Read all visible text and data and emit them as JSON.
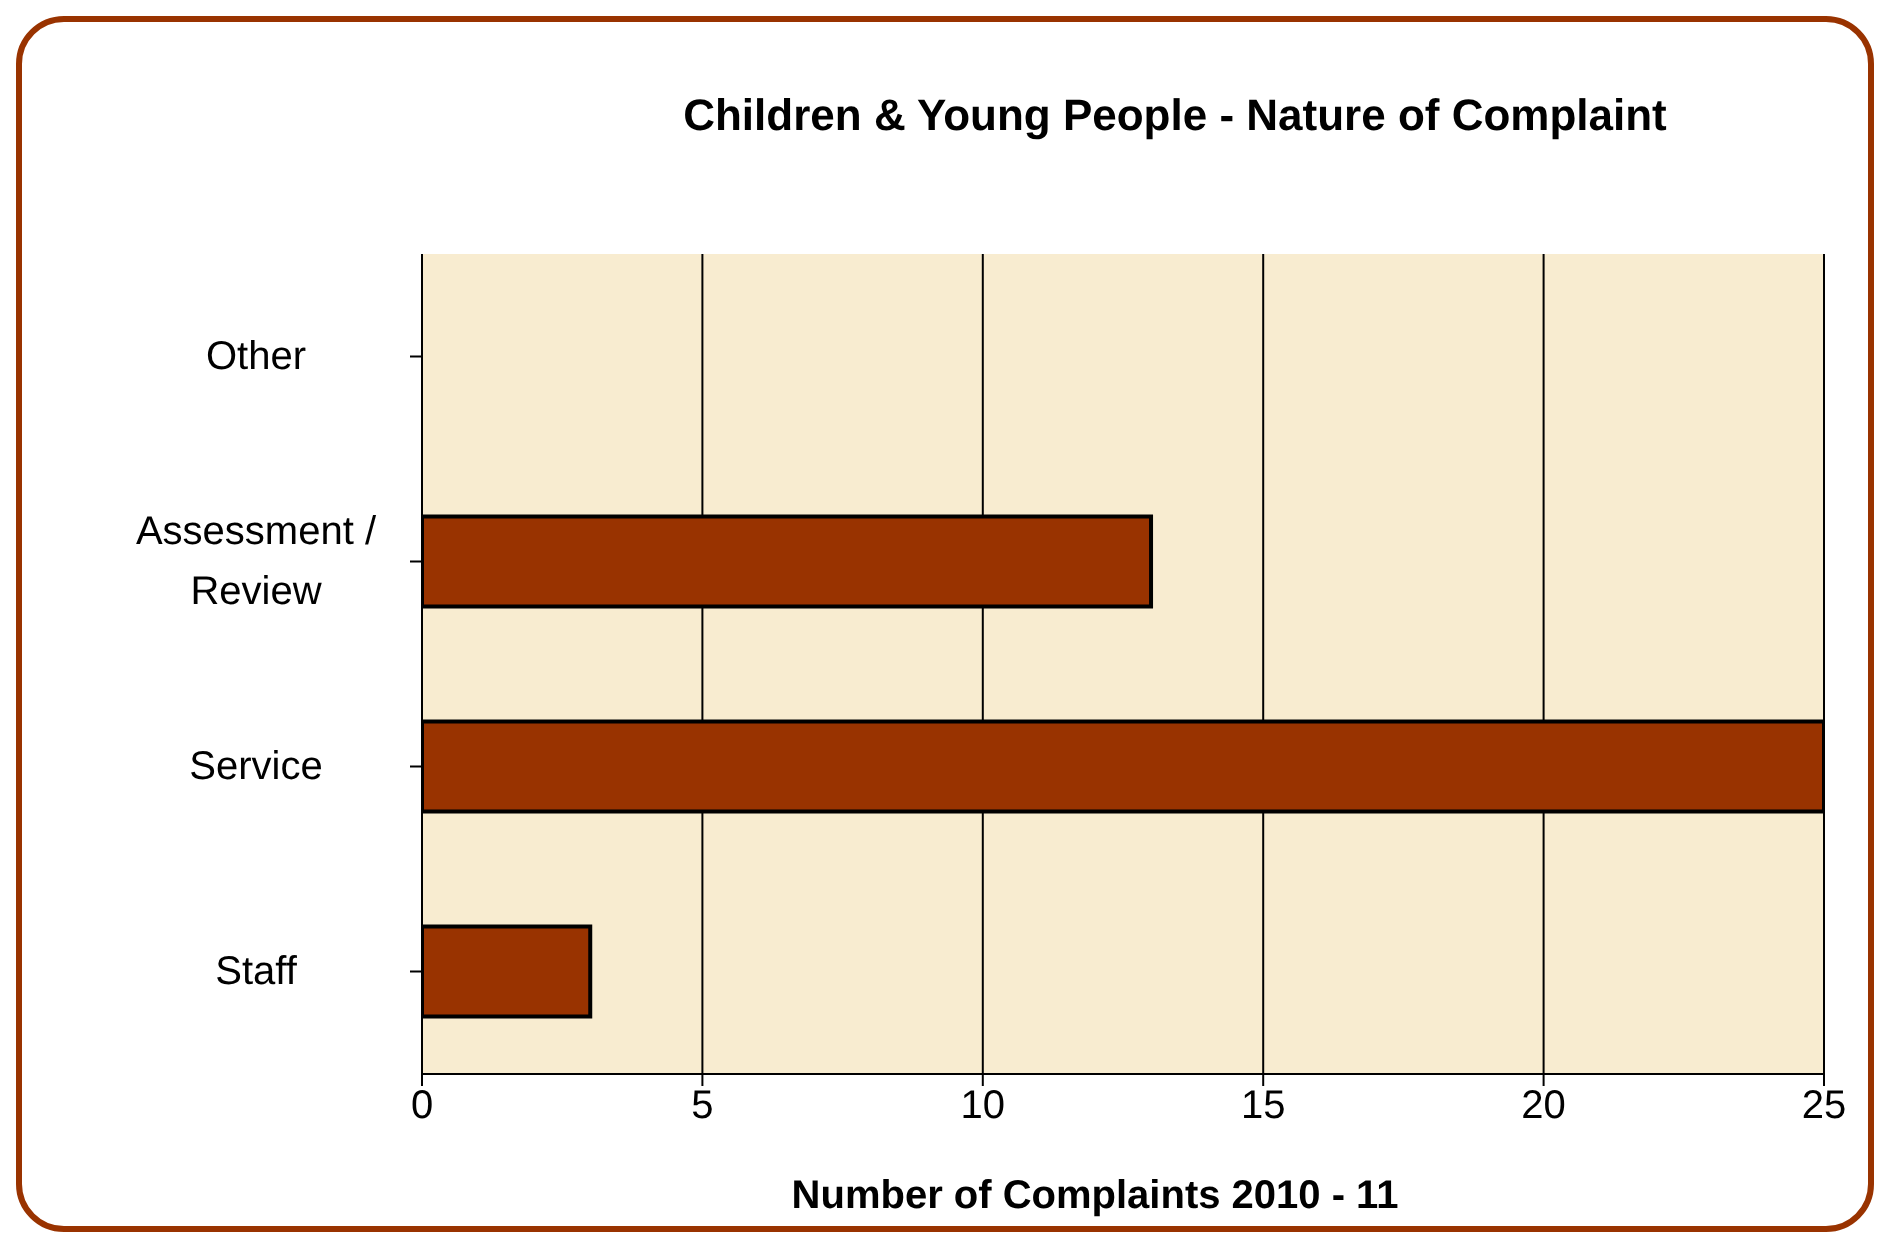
{
  "chart_data": {
    "type": "bar",
    "orientation": "horizontal",
    "title": "Children & Young People - Nature of Complaint",
    "xlabel": "Number of Complaints 2010 - 11",
    "categories": [
      "Other",
      "Assessment / Review",
      "Service",
      "Staff"
    ],
    "values": [
      0,
      13,
      25,
      3
    ],
    "color": "#993300",
    "xlim": [
      0,
      25
    ],
    "xticks": [
      0,
      5,
      10,
      15,
      20,
      25
    ],
    "grid": "x"
  }
}
